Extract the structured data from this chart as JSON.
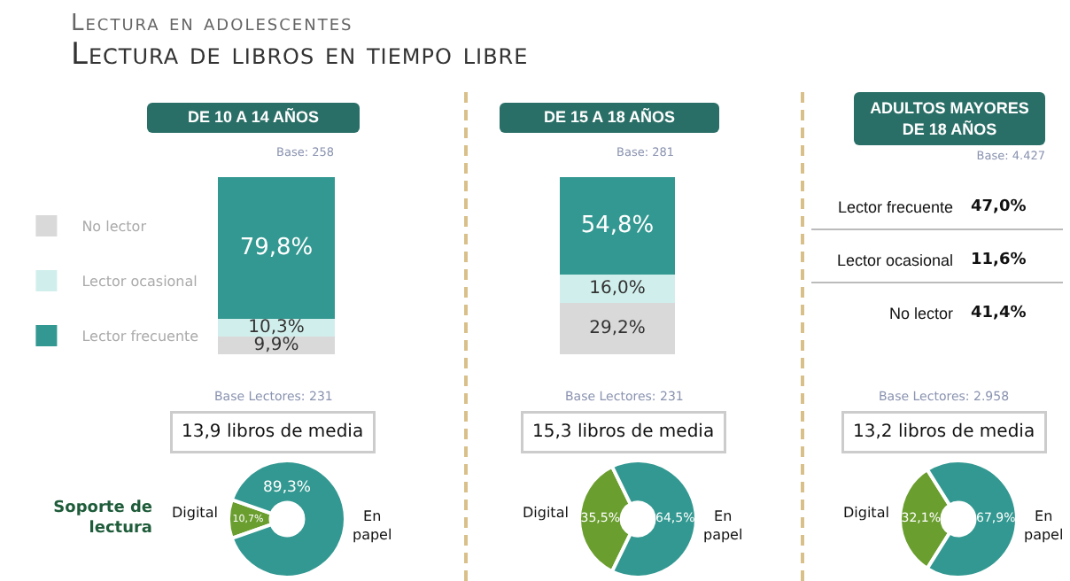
{
  "chart_data": [
    {
      "type": "other",
      "title": "Lectura en adolescentes",
      "subtitle": "Lectura de libros en tiempo libre"
    },
    {
      "type": "bar",
      "title": "DE 10 A 14 AÑOS",
      "annotations": [
        "Base: 258"
      ],
      "categories": [
        null
      ],
      "stacked": true,
      "ylim": [
        0,
        100
      ],
      "tick_labels": false,
      "legend": "left",
      "series": [
        {
          "name": "No lector",
          "color": "#d9d9d9",
          "values": [
            9.9
          ],
          "value_labels": [
            "9,9%"
          ]
        },
        {
          "name": "Lector ocasional",
          "color": "#d0efec",
          "values": [
            10.3
          ],
          "value_labels": [
            "10,3%"
          ]
        },
        {
          "name": "Lector frecuente",
          "color": "#329891",
          "values": [
            79.8
          ],
          "value_labels": [
            "79,8%"
          ]
        }
      ]
    },
    {
      "type": "bar",
      "title": "DE 15 A 18 AÑOS",
      "annotations": [
        "Base: 281"
      ],
      "categories": [
        null
      ],
      "stacked": true,
      "ylim": [
        0,
        100
      ],
      "tick_labels": false,
      "legend": false,
      "series": [
        {
          "color": "#d9d9d9",
          "values": [
            29.2
          ],
          "value_labels": [
            "29,2%"
          ]
        },
        {
          "color": "#d0efec",
          "values": [
            16.0
          ],
          "value_labels": [
            "16,0%"
          ]
        },
        {
          "color": "#329891",
          "values": [
            54.8
          ],
          "value_labels": [
            "54,8%"
          ]
        }
      ]
    },
    {
      "type": "other",
      "title": "ADULTOS MAYORES DE 18 AÑOS",
      "annotations": [
        "Base: 4.427"
      ],
      "categories": [
        "Lector frecuente",
        "Lector ocasional",
        "No lector"
      ],
      "value_labels": [
        "47,0%",
        "11,6%",
        "41,4%"
      ]
    },
    {
      "type": "donut",
      "annotations": [
        "Base Lectores: 231",
        "13,9 libros de media",
        "Soporte de lectura"
      ],
      "categories": [
        "Digital",
        "En papel"
      ],
      "values": [
        10.7,
        89.3
      ],
      "value_labels": [
        "10,7%",
        "89,3%"
      ],
      "colors": [
        "#6a9e2e",
        "#329891"
      ]
    },
    {
      "type": "donut",
      "annotations": [
        "Base Lectores: 231",
        "15,3 libros de media"
      ],
      "categories": [
        "Digital",
        "En papel"
      ],
      "values": [
        35.5,
        64.5
      ],
      "value_labels": [
        "35,5%",
        "64,5%"
      ],
      "colors": [
        "#6a9e2e",
        "#329891"
      ]
    },
    {
      "type": "donut",
      "annotations": [
        "Base Lectores: 2.958",
        "13,2 libros de media"
      ],
      "categories": [
        "Digital",
        "En papel"
      ],
      "values": [
        32.1,
        67.9
      ],
      "value_labels": [
        "32,1%",
        "67,9%"
      ],
      "colors": [
        "#6a9e2e",
        "#329891"
      ]
    }
  ]
}
